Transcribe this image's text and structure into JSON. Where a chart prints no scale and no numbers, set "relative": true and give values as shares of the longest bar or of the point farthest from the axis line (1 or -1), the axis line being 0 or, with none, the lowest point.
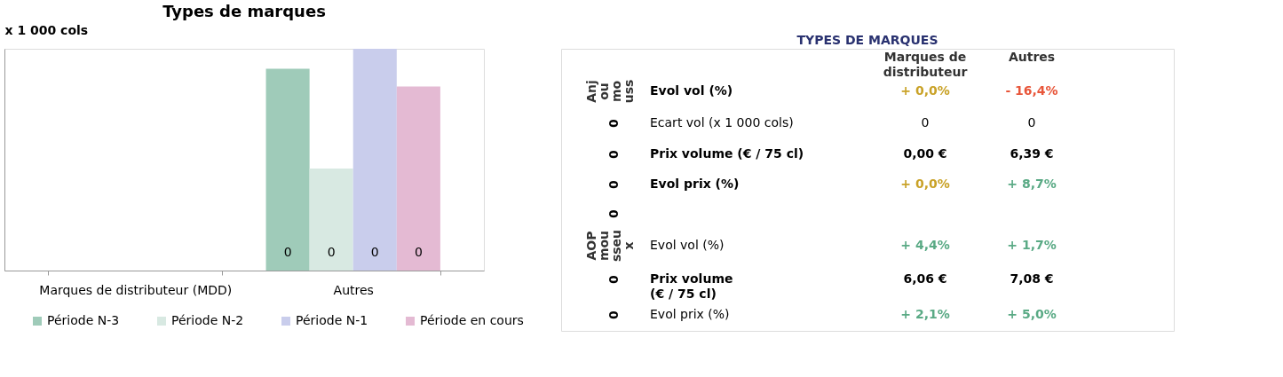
{
  "chart_data": [
    {
      "type": "bar",
      "title": "Types de marques",
      "ylabel": "x 1 000 cols",
      "relative": true,
      "categories": [
        "Marques de distributeur (MDD)",
        "Autres"
      ],
      "series": [
        {
          "name": "Période N-3",
          "color": "#9fcbb9",
          "values": [
            null,
            0.91
          ]
        },
        {
          "name": "Période N-2",
          "color": "#d8e9e2",
          "values": [
            null,
            0.46
          ]
        },
        {
          "name": "Période N-1",
          "color": "#c9cdec",
          "values": [
            null,
            1
          ]
        },
        {
          "name": "Période en cours",
          "color": "#e4bad3",
          "values": [
            null,
            0.83
          ]
        }
      ],
      "annotations": [
        "0",
        "0",
        "0",
        "0"
      ],
      "legend": "bottom",
      "grid": false
    },
    {
      "type": "other",
      "title": "TYPES DE MARQUES",
      "categories": [
        "Marques de\ndistributeur",
        "Autres"
      ],
      "y_categories": [
        "Evol vol (%)",
        "Ecart vol (x 1 000  cols)",
        "Prix volume (€ / 75 cl)",
        "Evol prix (%)",
        null,
        "Evol vol (%)",
        "Prix volume\n (€ / 75 cl)",
        "Evol prix (%)"
      ],
      "cell_labels": [
        [
          null,
          "+ 0,0%",
          "- 16,4%"
        ],
        [
          "0",
          "0",
          "0"
        ],
        [
          "0",
          "0,00 €",
          "6,39 €"
        ],
        [
          "0",
          "+ 0,0%",
          "+ 8,7%"
        ],
        [
          "0",
          null,
          null
        ],
        [
          null,
          "+ 4,4%",
          "+ 1,7%"
        ],
        [
          "0",
          "6,06 €",
          "7,08 €"
        ],
        [
          "0",
          "+ 2,1%",
          "+ 5,0%"
        ]
      ],
      "colors": [
        [
          null,
          "#c9a227",
          "#e8563a"
        ],
        [
          null,
          null,
          null
        ],
        [
          null,
          null,
          null
        ],
        [
          null,
          "#c9a227",
          "#5aaa85"
        ],
        [
          null,
          null,
          null
        ],
        [
          null,
          "#5aaa85",
          "#5aaa85"
        ],
        [
          null,
          null,
          null
        ],
        [
          null,
          "#5aaa85",
          "#5aaa85"
        ]
      ],
      "annotations": [
        "Anj\nou\nmo\nuss",
        "AOP\nmou\nsseu\nx"
      ]
    }
  ]
}
